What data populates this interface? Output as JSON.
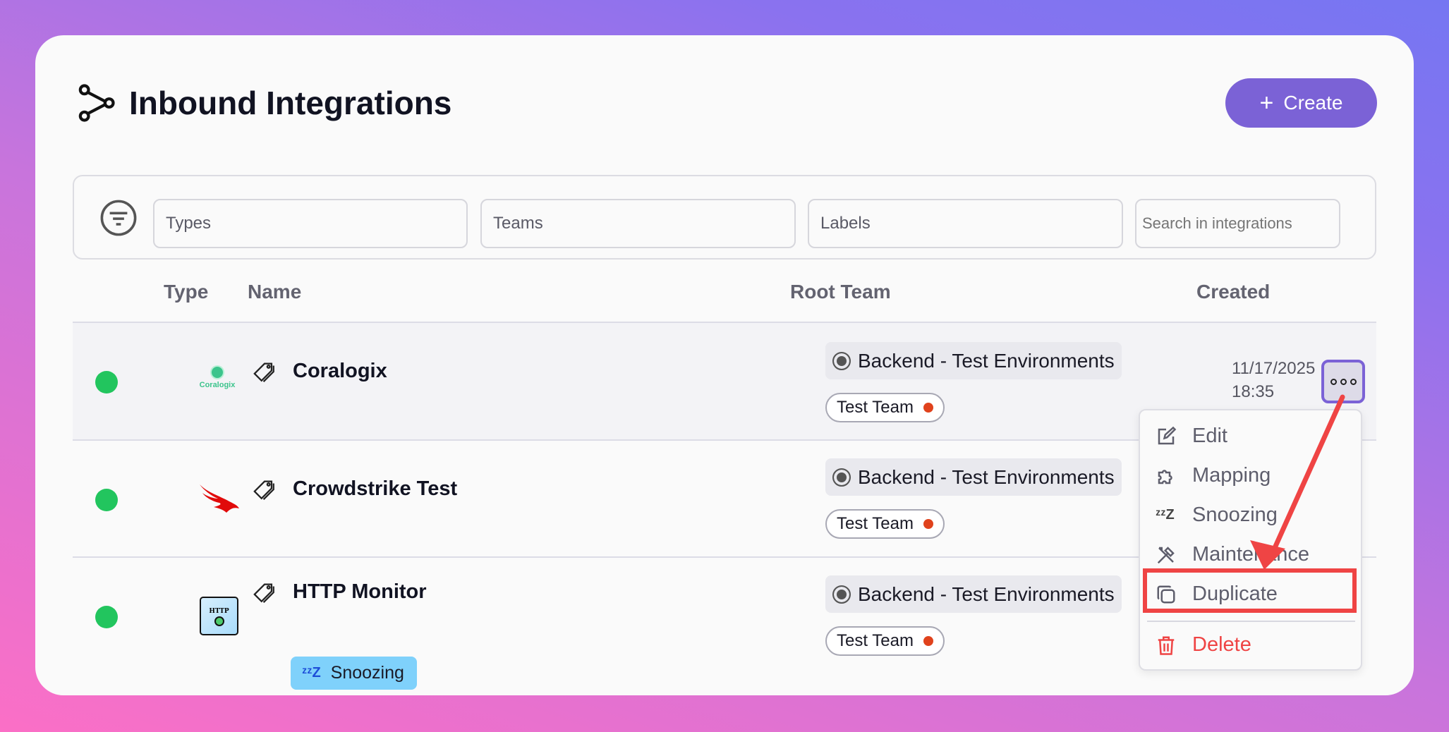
{
  "header": {
    "title": "Inbound Integrations",
    "create_label": "Create",
    "icon": "integrations-icon"
  },
  "filters": {
    "types": "Types",
    "teams": "Teams",
    "labels": "Labels",
    "search_placeholder": "Search in integrations"
  },
  "columns": {
    "type": "Type",
    "name": "Name",
    "root_team": "Root Team",
    "created": "Created"
  },
  "rows": [
    {
      "status": "active",
      "type": "Coralogix",
      "type_logo_text": "Coralogix",
      "name": "Coralogix",
      "root_team": "Backend - Test Environments",
      "team": "Test Team",
      "created_date": "11/17/2025",
      "created_time": "18:35"
    },
    {
      "status": "active",
      "type": "Crowdstrike",
      "name": "Crowdstrike Test",
      "root_team": "Backend - Test Environments",
      "team": "Test Team"
    },
    {
      "status": "active",
      "type": "HTTP",
      "type_logo_text": "HTTP",
      "name": "HTTP Monitor",
      "badge": "Snoozing",
      "root_team": "Backend - Test Environments",
      "team": "Test Team"
    }
  ],
  "menu": {
    "edit": "Edit",
    "mapping": "Mapping",
    "snoozing": "Snoozing",
    "maintenance": "Maintenance",
    "duplicate": "Duplicate",
    "delete": "Delete"
  },
  "colors": {
    "accent": "#7b62d6",
    "status_active": "#22c55e",
    "danger": "#ef4444",
    "snooze_badge": "#7fd1fb",
    "team_dot": "#e0421c"
  }
}
